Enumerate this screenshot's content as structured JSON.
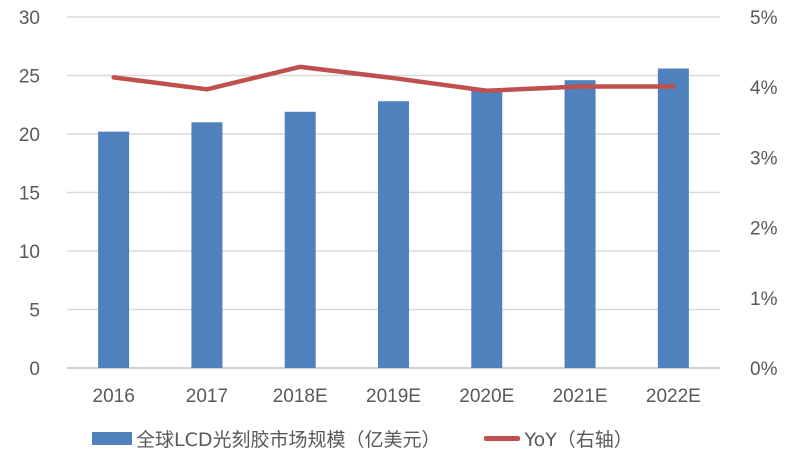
{
  "chart_data": {
    "type": "bar+line",
    "categories": [
      "2016",
      "2017",
      "2018E",
      "2019E",
      "2020E",
      "2021E",
      "2022E"
    ],
    "series": [
      {
        "name": "全球LCD光刻胶市场规模（亿美元）",
        "type": "bar",
        "axis": "left",
        "color": "#4f81bd",
        "values": [
          20.2,
          21.0,
          21.9,
          22.8,
          23.7,
          24.6,
          25.6
        ]
      },
      {
        "name": "YoY（右轴）",
        "type": "line",
        "axis": "right",
        "color": "#c0504d",
        "values": [
          4.14,
          3.97,
          4.29,
          4.13,
          3.95,
          4.01,
          4.01
        ]
      }
    ],
    "left_axis": {
      "ylim": [
        0,
        30
      ],
      "ticks": [
        "0",
        "5",
        "10",
        "15",
        "20",
        "25",
        "30"
      ]
    },
    "right_axis": {
      "ylim": [
        0,
        5
      ],
      "ticks": [
        "0%",
        "1%",
        "2%",
        "3%",
        "4%",
        "5%"
      ]
    },
    "grid": true,
    "legend_position": "bottom"
  }
}
